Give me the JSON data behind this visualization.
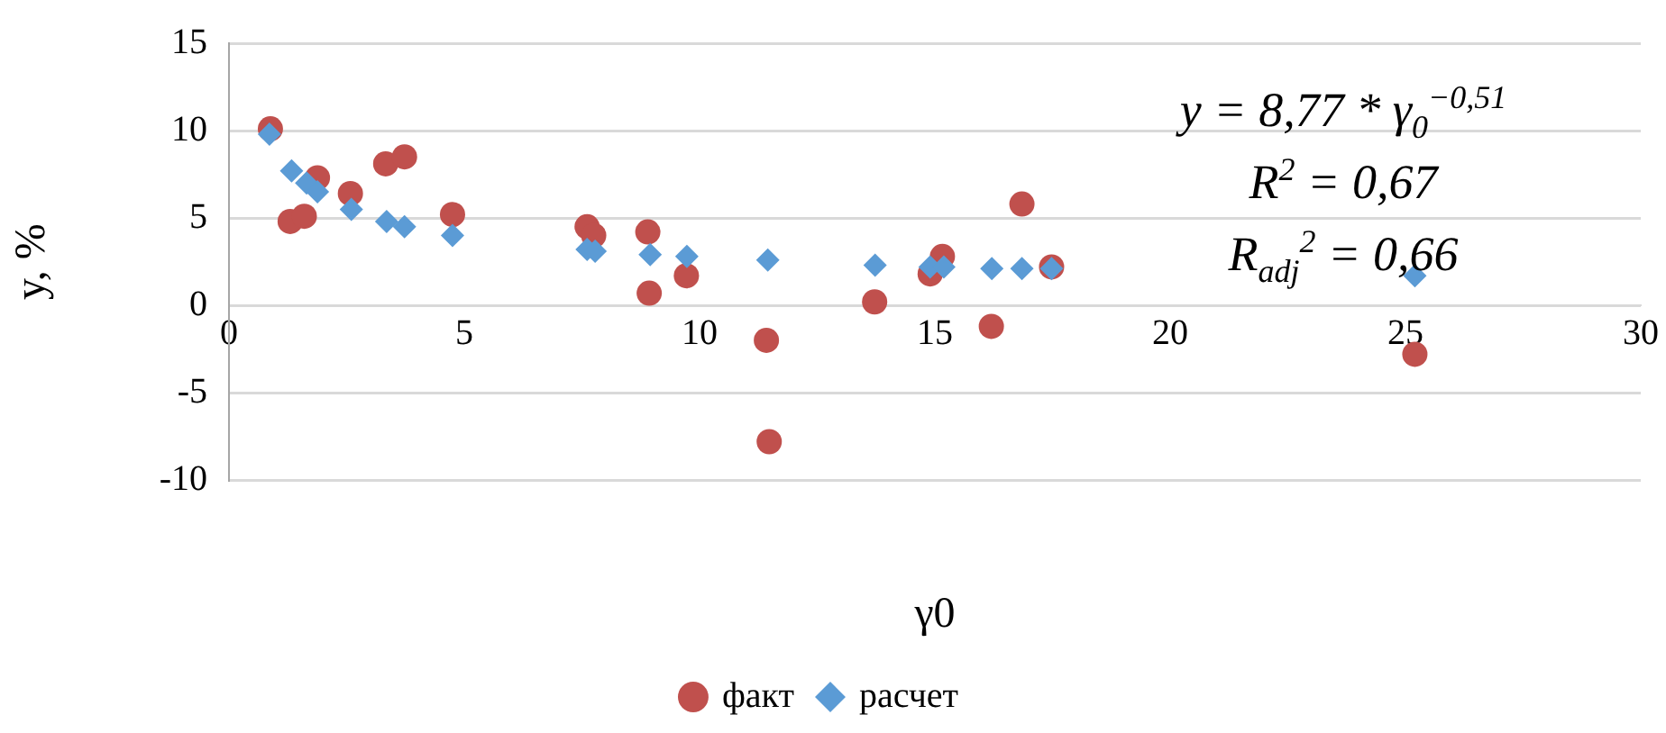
{
  "chart_data": {
    "type": "scatter",
    "xlabel": "γ0",
    "ylabel": "y, %",
    "xlim": [
      0,
      30
    ],
    "xticks": [
      0,
      5,
      10,
      15,
      20,
      25,
      30
    ],
    "ylim": [
      -10,
      15
    ],
    "yticks": [
      -10,
      -5,
      0,
      5,
      10,
      15
    ],
    "grid": "y",
    "legend": "bottom",
    "annotations": [
      "y = 8,77 * γ$_{0}$$^{−0,51}$",
      "R$^{2}$ =  0,67",
      "R$_{adj}$$^{2}$ = 0,66"
    ],
    "series": [
      {
        "name": "факт",
        "color": "#c0504d",
        "marker": "circle",
        "x": [
          0.88,
          1.3,
          1.6,
          1.88,
          2.58,
          3.33,
          3.73,
          4.75,
          7.61,
          7.75,
          8.9,
          8.93,
          9.72,
          11.42,
          11.48,
          13.72,
          14.9,
          15.16,
          16.2,
          16.85,
          17.48,
          25.2
        ],
        "values": [
          10.1,
          4.8,
          5.1,
          7.3,
          6.4,
          8.1,
          8.5,
          5.2,
          4.5,
          4.0,
          4.2,
          0.7,
          1.7,
          -2.0,
          -7.8,
          0.2,
          1.8,
          2.8,
          -1.2,
          5.8,
          2.2,
          -2.8
        ]
      },
      {
        "name": "расчет",
        "color": "#5b9bd5",
        "marker": "diamond",
        "x": [
          0.86,
          1.33,
          1.65,
          1.88,
          2.6,
          3.35,
          3.73,
          4.75,
          7.61,
          7.78,
          8.95,
          9.73,
          11.45,
          13.73,
          14.9,
          15.19,
          16.21,
          16.85,
          17.48,
          25.2
        ],
        "values": [
          9.8,
          7.7,
          7.0,
          6.5,
          5.5,
          4.8,
          4.5,
          4.0,
          3.2,
          3.1,
          2.9,
          2.8,
          2.6,
          2.3,
          2.2,
          2.2,
          2.1,
          2.1,
          2.1,
          1.7
        ]
      }
    ]
  }
}
